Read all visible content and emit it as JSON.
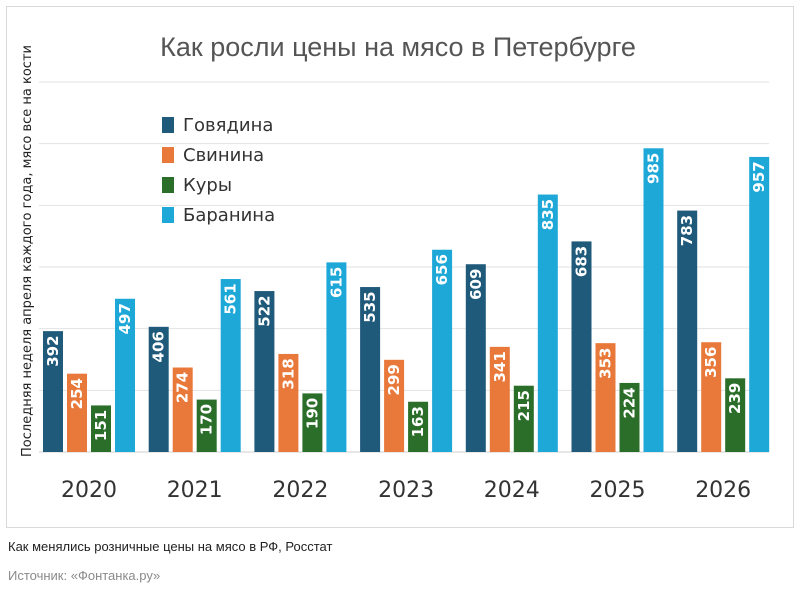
{
  "caption": "Как менялись розничные цены на мясо в РФ, Росстат",
  "source": "Источник: «Фонтанка.ру»",
  "chart_data": {
    "type": "bar",
    "title": "Как росли цены на мясо в Петербурге",
    "xlabel": "",
    "ylabel": "Последняя неделя апреля каждого года, мясо все на кости",
    "categories": [
      "2020",
      "2021",
      "2022",
      "2023",
      "2024",
      "2025",
      "2026"
    ],
    "ylim": [
      0,
      1200
    ],
    "grid": true,
    "legend_position": "top-left",
    "series": [
      {
        "name": "Говядина",
        "color": "#1f5a7a",
        "values": [
          392,
          406,
          522,
          535,
          609,
          683,
          783
        ]
      },
      {
        "name": "Свинина",
        "color": "#e8793a",
        "values": [
          254,
          274,
          318,
          299,
          341,
          353,
          356
        ]
      },
      {
        "name": "Куры",
        "color": "#2a6e2a",
        "values": [
          151,
          170,
          190,
          163,
          215,
          224,
          239
        ]
      },
      {
        "name": "Баранина",
        "color": "#1ea8d8",
        "values": [
          497,
          561,
          615,
          656,
          835,
          985,
          957
        ]
      }
    ]
  }
}
